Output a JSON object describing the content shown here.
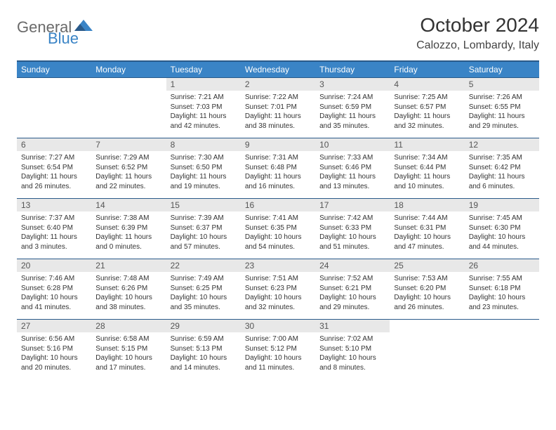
{
  "logo": {
    "general": "General",
    "blue": "Blue"
  },
  "title": "October 2024",
  "location": "Calozzo, Lombardy, Italy",
  "colors": {
    "header_bg": "#3a84c6",
    "header_border": "#2a5a8a",
    "daynum_bg": "#e8e8e8",
    "text": "#333333",
    "logo_gray": "#6a6a6a",
    "logo_blue": "#3a84c6",
    "page_bg": "#ffffff"
  },
  "day_headers": [
    "Sunday",
    "Monday",
    "Tuesday",
    "Wednesday",
    "Thursday",
    "Friday",
    "Saturday"
  ],
  "weeks": [
    [
      null,
      null,
      {
        "num": "1",
        "sunrise": "7:21 AM",
        "sunset": "7:03 PM",
        "daylight": "11 hours and 42 minutes."
      },
      {
        "num": "2",
        "sunrise": "7:22 AM",
        "sunset": "7:01 PM",
        "daylight": "11 hours and 38 minutes."
      },
      {
        "num": "3",
        "sunrise": "7:24 AM",
        "sunset": "6:59 PM",
        "daylight": "11 hours and 35 minutes."
      },
      {
        "num": "4",
        "sunrise": "7:25 AM",
        "sunset": "6:57 PM",
        "daylight": "11 hours and 32 minutes."
      },
      {
        "num": "5",
        "sunrise": "7:26 AM",
        "sunset": "6:55 PM",
        "daylight": "11 hours and 29 minutes."
      }
    ],
    [
      {
        "num": "6",
        "sunrise": "7:27 AM",
        "sunset": "6:54 PM",
        "daylight": "11 hours and 26 minutes."
      },
      {
        "num": "7",
        "sunrise": "7:29 AM",
        "sunset": "6:52 PM",
        "daylight": "11 hours and 22 minutes."
      },
      {
        "num": "8",
        "sunrise": "7:30 AM",
        "sunset": "6:50 PM",
        "daylight": "11 hours and 19 minutes."
      },
      {
        "num": "9",
        "sunrise": "7:31 AM",
        "sunset": "6:48 PM",
        "daylight": "11 hours and 16 minutes."
      },
      {
        "num": "10",
        "sunrise": "7:33 AM",
        "sunset": "6:46 PM",
        "daylight": "11 hours and 13 minutes."
      },
      {
        "num": "11",
        "sunrise": "7:34 AM",
        "sunset": "6:44 PM",
        "daylight": "11 hours and 10 minutes."
      },
      {
        "num": "12",
        "sunrise": "7:35 AM",
        "sunset": "6:42 PM",
        "daylight": "11 hours and 6 minutes."
      }
    ],
    [
      {
        "num": "13",
        "sunrise": "7:37 AM",
        "sunset": "6:40 PM",
        "daylight": "11 hours and 3 minutes."
      },
      {
        "num": "14",
        "sunrise": "7:38 AM",
        "sunset": "6:39 PM",
        "daylight": "11 hours and 0 minutes."
      },
      {
        "num": "15",
        "sunrise": "7:39 AM",
        "sunset": "6:37 PM",
        "daylight": "10 hours and 57 minutes."
      },
      {
        "num": "16",
        "sunrise": "7:41 AM",
        "sunset": "6:35 PM",
        "daylight": "10 hours and 54 minutes."
      },
      {
        "num": "17",
        "sunrise": "7:42 AM",
        "sunset": "6:33 PM",
        "daylight": "10 hours and 51 minutes."
      },
      {
        "num": "18",
        "sunrise": "7:44 AM",
        "sunset": "6:31 PM",
        "daylight": "10 hours and 47 minutes."
      },
      {
        "num": "19",
        "sunrise": "7:45 AM",
        "sunset": "6:30 PM",
        "daylight": "10 hours and 44 minutes."
      }
    ],
    [
      {
        "num": "20",
        "sunrise": "7:46 AM",
        "sunset": "6:28 PM",
        "daylight": "10 hours and 41 minutes."
      },
      {
        "num": "21",
        "sunrise": "7:48 AM",
        "sunset": "6:26 PM",
        "daylight": "10 hours and 38 minutes."
      },
      {
        "num": "22",
        "sunrise": "7:49 AM",
        "sunset": "6:25 PM",
        "daylight": "10 hours and 35 minutes."
      },
      {
        "num": "23",
        "sunrise": "7:51 AM",
        "sunset": "6:23 PM",
        "daylight": "10 hours and 32 minutes."
      },
      {
        "num": "24",
        "sunrise": "7:52 AM",
        "sunset": "6:21 PM",
        "daylight": "10 hours and 29 minutes."
      },
      {
        "num": "25",
        "sunrise": "7:53 AM",
        "sunset": "6:20 PM",
        "daylight": "10 hours and 26 minutes."
      },
      {
        "num": "26",
        "sunrise": "7:55 AM",
        "sunset": "6:18 PM",
        "daylight": "10 hours and 23 minutes."
      }
    ],
    [
      {
        "num": "27",
        "sunrise": "6:56 AM",
        "sunset": "5:16 PM",
        "daylight": "10 hours and 20 minutes."
      },
      {
        "num": "28",
        "sunrise": "6:58 AM",
        "sunset": "5:15 PM",
        "daylight": "10 hours and 17 minutes."
      },
      {
        "num": "29",
        "sunrise": "6:59 AM",
        "sunset": "5:13 PM",
        "daylight": "10 hours and 14 minutes."
      },
      {
        "num": "30",
        "sunrise": "7:00 AM",
        "sunset": "5:12 PM",
        "daylight": "10 hours and 11 minutes."
      },
      {
        "num": "31",
        "sunrise": "7:02 AM",
        "sunset": "5:10 PM",
        "daylight": "10 hours and 8 minutes."
      },
      null,
      null
    ]
  ],
  "labels": {
    "sunrise": "Sunrise:",
    "sunset": "Sunset:",
    "daylight": "Daylight:"
  }
}
